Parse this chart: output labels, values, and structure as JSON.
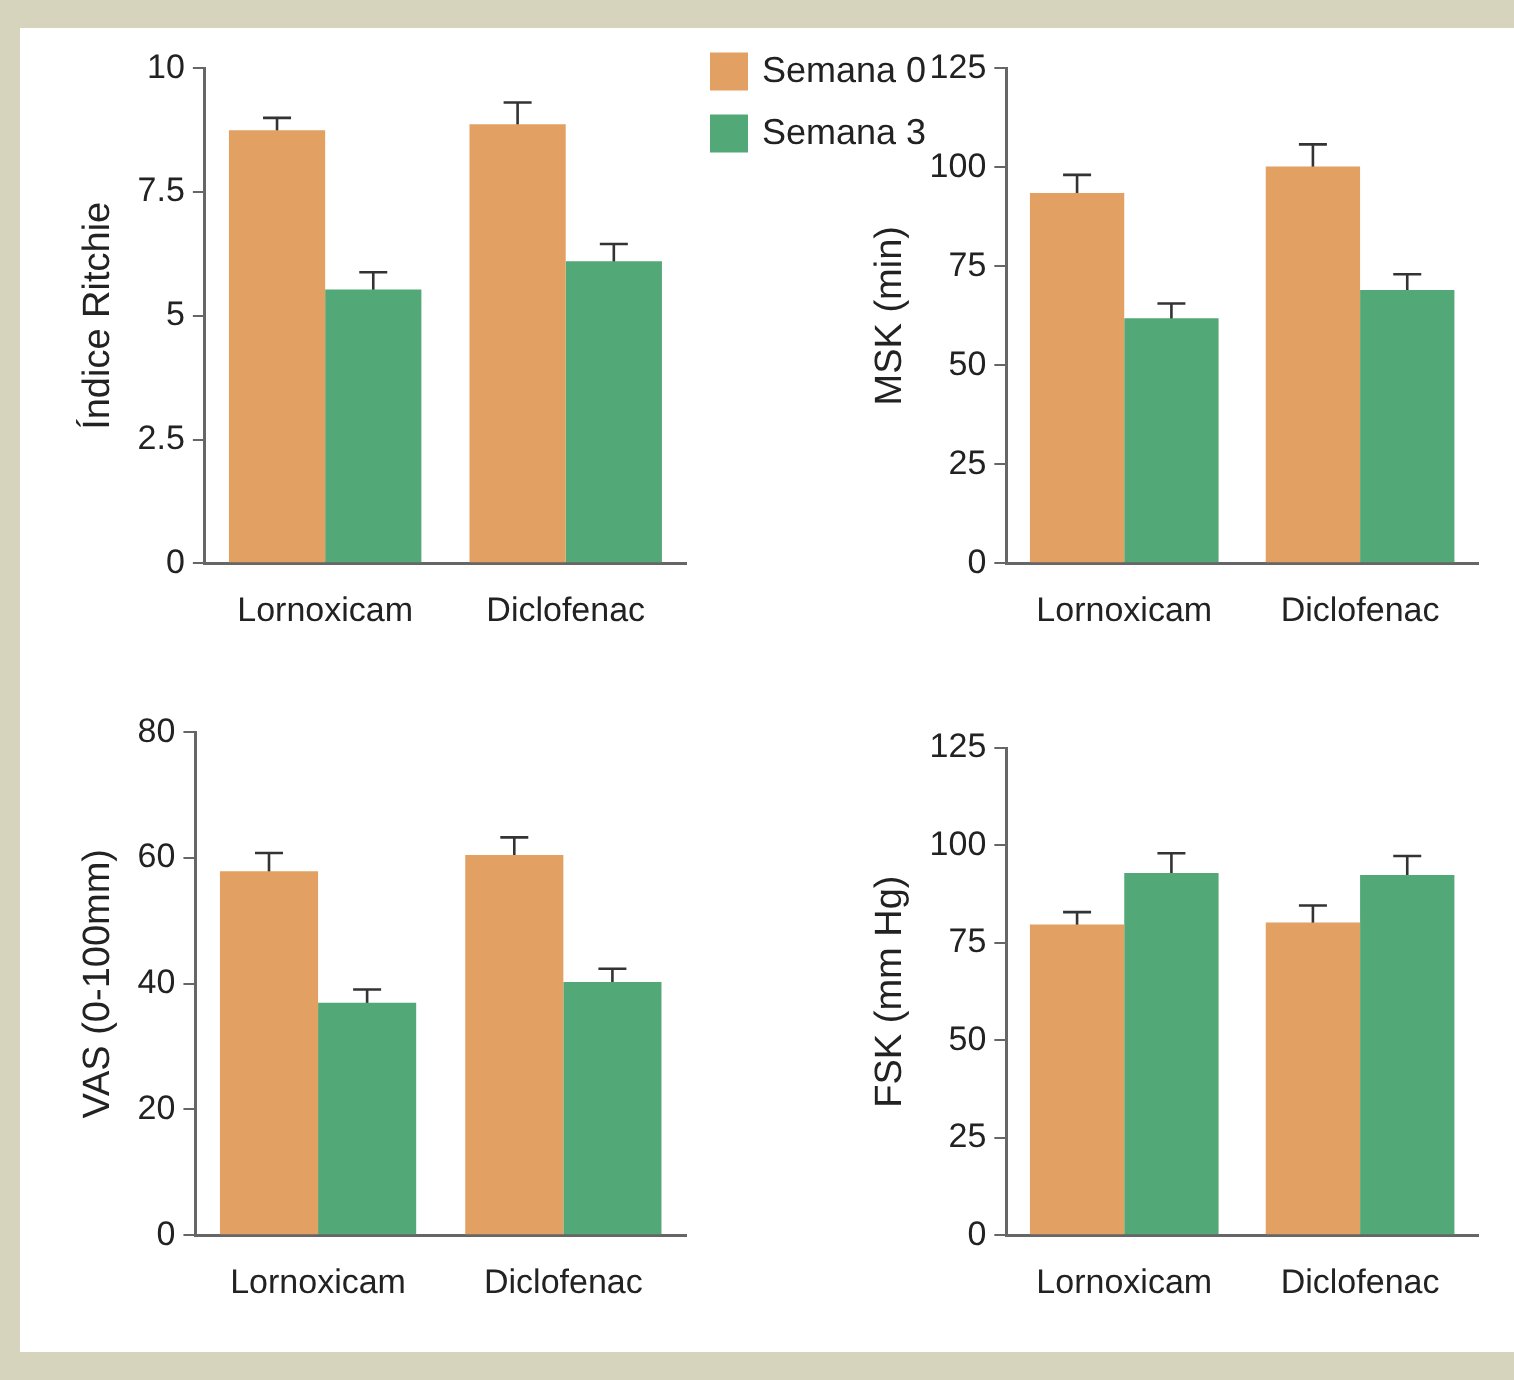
{
  "chart_data": [
    {
      "type": "bar",
      "ylabel": "Índice Ritchie",
      "categories": [
        "Lornoxicam",
        "Diclofenac"
      ],
      "ylim": [
        0,
        10
      ],
      "yticks": [
        0,
        2.5,
        5,
        7.5,
        10
      ],
      "grid": false,
      "legend": "top right",
      "series": [
        {
          "name": "Semana 0",
          "color": "#e2a062",
          "values": [
            8.75,
            8.87
          ],
          "errors": [
            0.25,
            0.44
          ]
        },
        {
          "name": "Semana 3",
          "color": "#52a977",
          "values": [
            5.53,
            6.1
          ],
          "errors": [
            0.35,
            0.35
          ]
        }
      ]
    },
    {
      "type": "bar",
      "ylabel": "MSK (min)",
      "categories": [
        "Lornoxicam",
        "Diclofenac"
      ],
      "ylim": [
        0,
        125
      ],
      "yticks": [
        0,
        25,
        50,
        75,
        100,
        125
      ],
      "grid": false,
      "series": [
        {
          "color": "#e2a062",
          "values": [
            93.5,
            100.2
          ],
          "errors": [
            4.6,
            5.6
          ]
        },
        {
          "color": "#52a977",
          "values": [
            61.9,
            69
          ],
          "errors": [
            3.7,
            4
          ]
        }
      ]
    },
    {
      "type": "bar",
      "ylabel": "VAS (0-100mm)",
      "categories": [
        "Lornoxicam",
        "Diclofenac"
      ],
      "ylim": [
        0,
        80
      ],
      "yticks": [
        0,
        20,
        40,
        60,
        80
      ],
      "grid": false,
      "series": [
        {
          "color": "#e2a062",
          "values": [
            57.9,
            60.5
          ],
          "errors": [
            2.9,
            2.8
          ]
        },
        {
          "color": "#52a977",
          "values": [
            37,
            40.3
          ],
          "errors": [
            2.1,
            2.1
          ]
        }
      ]
    },
    {
      "type": "bar",
      "ylabel": "FSK (mm Hg)",
      "categories": [
        "Lornoxicam",
        "Diclofenac"
      ],
      "ylim": [
        0,
        125
      ],
      "yticks": [
        0,
        25,
        50,
        75,
        100,
        125
      ],
      "grid": false,
      "series": [
        {
          "color": "#e2a062",
          "values": [
            79.7,
            80.2
          ],
          "errors": [
            3.2,
            4.4
          ]
        },
        {
          "color": "#52a977",
          "values": [
            92.9,
            92.4
          ],
          "errors": [
            5.1,
            4.9
          ]
        }
      ]
    }
  ]
}
